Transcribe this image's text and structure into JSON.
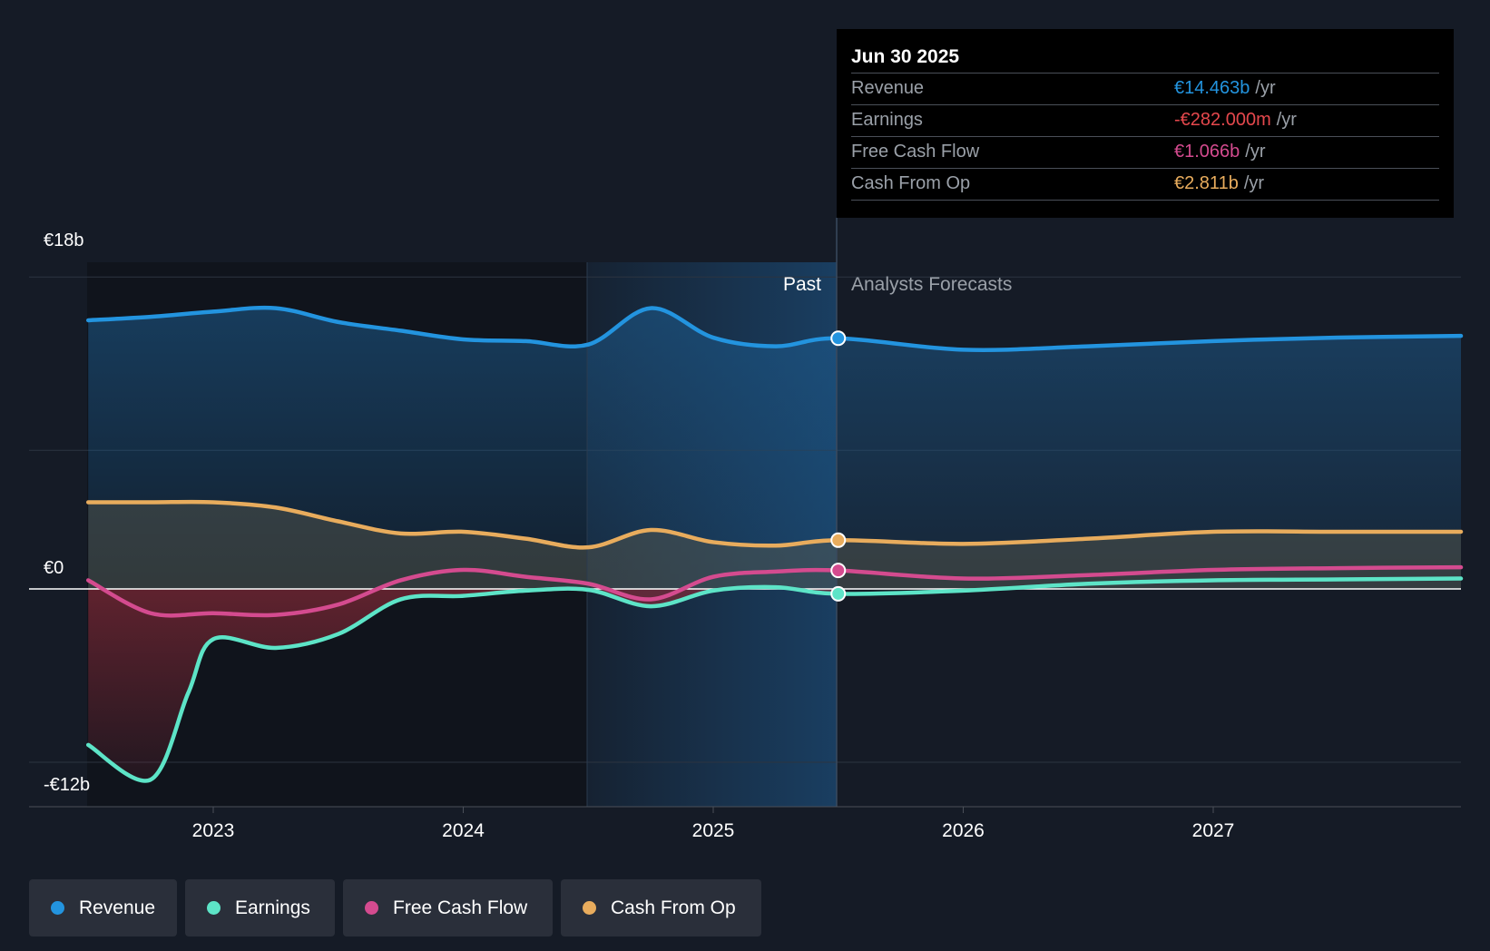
{
  "chart_data": {
    "type": "line",
    "currency_prefix": "€",
    "y_axis": {
      "top_label": "€18b",
      "zero_label": "€0",
      "bottom_label": "-€12b",
      "ylim": [
        -12,
        18
      ],
      "gridlines": [
        18,
        8,
        0,
        -10
      ]
    },
    "x_ticks": [
      "2023",
      "2024",
      "2025",
      "2026",
      "2027"
    ],
    "zones": {
      "past_label": "Past",
      "forecast_label": "Analysts Forecasts",
      "divider_date": "Jun 30 2025"
    },
    "series": [
      {
        "name": "Revenue",
        "color": "#2394df",
        "points": [
          [
            2022.5,
            15.5
          ],
          [
            2022.75,
            15.7
          ],
          [
            2023.0,
            16.0
          ],
          [
            2023.25,
            16.2
          ],
          [
            2023.5,
            15.4
          ],
          [
            2023.75,
            14.9
          ],
          [
            2024.0,
            14.4
          ],
          [
            2024.25,
            14.3
          ],
          [
            2024.5,
            14.1
          ],
          [
            2024.75,
            16.2
          ],
          [
            2025.0,
            14.5
          ],
          [
            2025.25,
            14.0
          ],
          [
            2025.5,
            14.463
          ],
          [
            2026.0,
            13.8
          ],
          [
            2026.5,
            14.0
          ],
          [
            2027.0,
            14.3
          ],
          [
            2027.5,
            14.5
          ],
          [
            2028.0,
            14.6
          ]
        ]
      },
      {
        "name": "Earnings",
        "color": "#5de4c7",
        "points": [
          [
            2022.5,
            -9.0
          ],
          [
            2022.75,
            -11.0
          ],
          [
            2022.9,
            -6.0
          ],
          [
            2023.0,
            -2.9
          ],
          [
            2023.25,
            -3.4
          ],
          [
            2023.5,
            -2.6
          ],
          [
            2023.75,
            -0.6
          ],
          [
            2024.0,
            -0.4
          ],
          [
            2024.25,
            -0.1
          ],
          [
            2024.5,
            -0.05
          ],
          [
            2024.75,
            -1.0
          ],
          [
            2025.0,
            -0.1
          ],
          [
            2025.25,
            0.1
          ],
          [
            2025.5,
            -0.282
          ],
          [
            2026.0,
            -0.1
          ],
          [
            2026.5,
            0.3
          ],
          [
            2027.0,
            0.5
          ],
          [
            2027.5,
            0.55
          ],
          [
            2028.0,
            0.6
          ]
        ]
      },
      {
        "name": "Free Cash Flow",
        "color": "#d44b8f",
        "points": [
          [
            2022.5,
            0.5
          ],
          [
            2022.75,
            -1.4
          ],
          [
            2023.0,
            -1.4
          ],
          [
            2023.25,
            -1.5
          ],
          [
            2023.5,
            -0.9
          ],
          [
            2023.75,
            0.5
          ],
          [
            2024.0,
            1.1
          ],
          [
            2024.25,
            0.7
          ],
          [
            2024.5,
            0.3
          ],
          [
            2024.75,
            -0.6
          ],
          [
            2025.0,
            0.7
          ],
          [
            2025.25,
            1.0
          ],
          [
            2025.5,
            1.066
          ],
          [
            2026.0,
            0.6
          ],
          [
            2026.5,
            0.8
          ],
          [
            2027.0,
            1.1
          ],
          [
            2027.5,
            1.2
          ],
          [
            2028.0,
            1.25
          ]
        ]
      },
      {
        "name": "Cash From Op",
        "color": "#e8ac5d",
        "points": [
          [
            2022.5,
            5.0
          ],
          [
            2022.75,
            5.0
          ],
          [
            2023.0,
            5.0
          ],
          [
            2023.25,
            4.7
          ],
          [
            2023.5,
            3.9
          ],
          [
            2023.75,
            3.2
          ],
          [
            2024.0,
            3.3
          ],
          [
            2024.25,
            2.9
          ],
          [
            2024.5,
            2.4
          ],
          [
            2024.75,
            3.4
          ],
          [
            2025.0,
            2.7
          ],
          [
            2025.25,
            2.5
          ],
          [
            2025.5,
            2.811
          ],
          [
            2026.0,
            2.6
          ],
          [
            2026.5,
            2.9
          ],
          [
            2027.0,
            3.3
          ],
          [
            2027.5,
            3.3
          ],
          [
            2028.0,
            3.3
          ]
        ]
      }
    ],
    "tooltip": {
      "date": "Jun 30 2025",
      "unit": "/yr",
      "rows": [
        {
          "name": "Revenue",
          "value": "€14.463b",
          "color": "#2394df"
        },
        {
          "name": "Earnings",
          "value": "-€282.000m",
          "color": "#e5484d"
        },
        {
          "name": "Free Cash Flow",
          "value": "€1.066b",
          "color": "#d44b8f"
        },
        {
          "name": "Cash From Op",
          "value": "€2.811b",
          "color": "#e8ac5d"
        }
      ]
    },
    "legend": [
      {
        "name": "Revenue",
        "color": "#2394df"
      },
      {
        "name": "Earnings",
        "color": "#5de4c7"
      },
      {
        "name": "Free Cash Flow",
        "color": "#d44b8f"
      },
      {
        "name": "Cash From Op",
        "color": "#e8ac5d"
      }
    ]
  }
}
